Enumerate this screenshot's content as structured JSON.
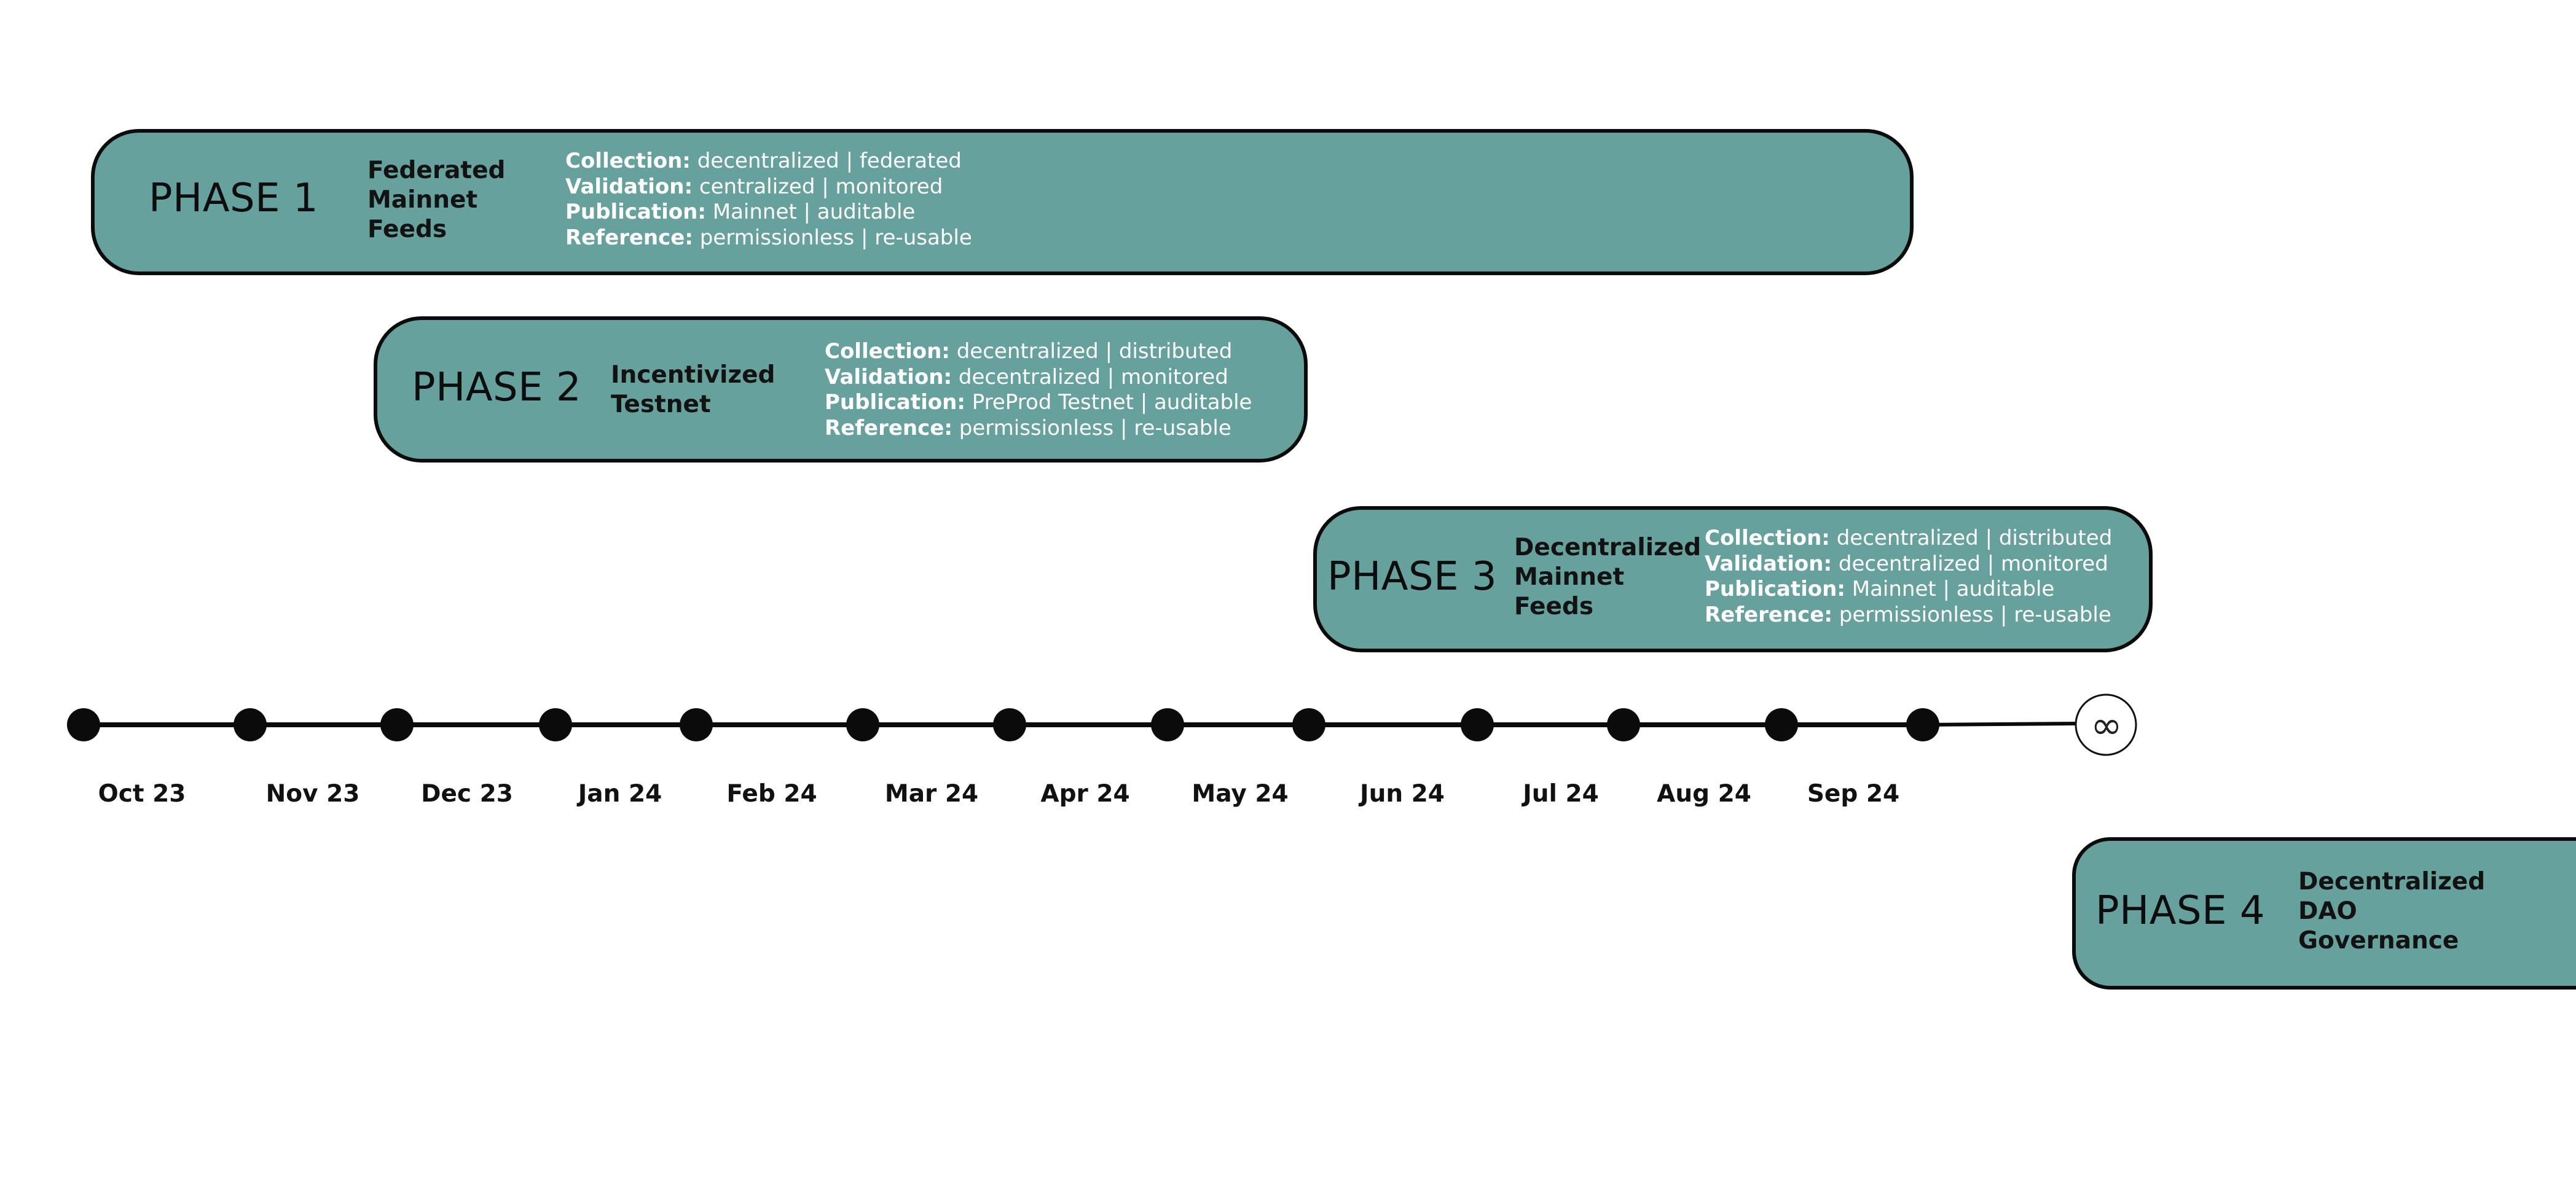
{
  "colors": {
    "phase_fill": "#67a19d",
    "outline": "#0b0b0b",
    "detail_text": "#ffffff"
  },
  "phases": [
    {
      "title": "PHASE 1",
      "name_lines": [
        "Federated",
        "Mainnet",
        "Feeds"
      ],
      "details": [
        {
          "label": "Collection:",
          "value": "decentralized | federated"
        },
        {
          "label": "Validation:",
          "value": "centralized | monitored"
        },
        {
          "label": "Publication:",
          "value": "Mainnet | auditable"
        },
        {
          "label": "Reference:",
          "value": "permissionless | re-usable"
        }
      ]
    },
    {
      "title": "PHASE 2",
      "name_lines": [
        "Incentivized",
        "Testnet"
      ],
      "details": [
        {
          "label": "Collection:",
          "value": "decentralized | distributed"
        },
        {
          "label": "Validation:",
          "value": "decentralized | monitored"
        },
        {
          "label": "Publication:",
          "value": "PreProd Testnet | auditable"
        },
        {
          "label": "Reference:",
          "value": "permissionless | re-usable"
        }
      ]
    },
    {
      "title": "PHASE 3",
      "name_lines": [
        "Decentralized",
        "Mainnet",
        "Feeds"
      ],
      "details": [
        {
          "label": "Collection:",
          "value": "decentralized | distributed"
        },
        {
          "label": "Validation:",
          "value": "decentralized | monitored"
        },
        {
          "label": "Publication:",
          "value": "Mainnet | auditable"
        },
        {
          "label": "Reference:",
          "value": "permissionless | re-usable"
        }
      ]
    },
    {
      "title": "PHASE 4",
      "name_lines": [
        "Decentralized",
        "DAO",
        "Governance"
      ]
    }
  ],
  "timeline": {
    "months": [
      "Oct 23",
      "Nov 23",
      "Dec 23",
      "Jan 24",
      "Feb 24",
      "Mar 24",
      "Apr 24",
      "May 24",
      "Jun 24",
      "Jul 24",
      "Aug 24",
      "Sep 24"
    ],
    "end_symbol": "∞"
  }
}
